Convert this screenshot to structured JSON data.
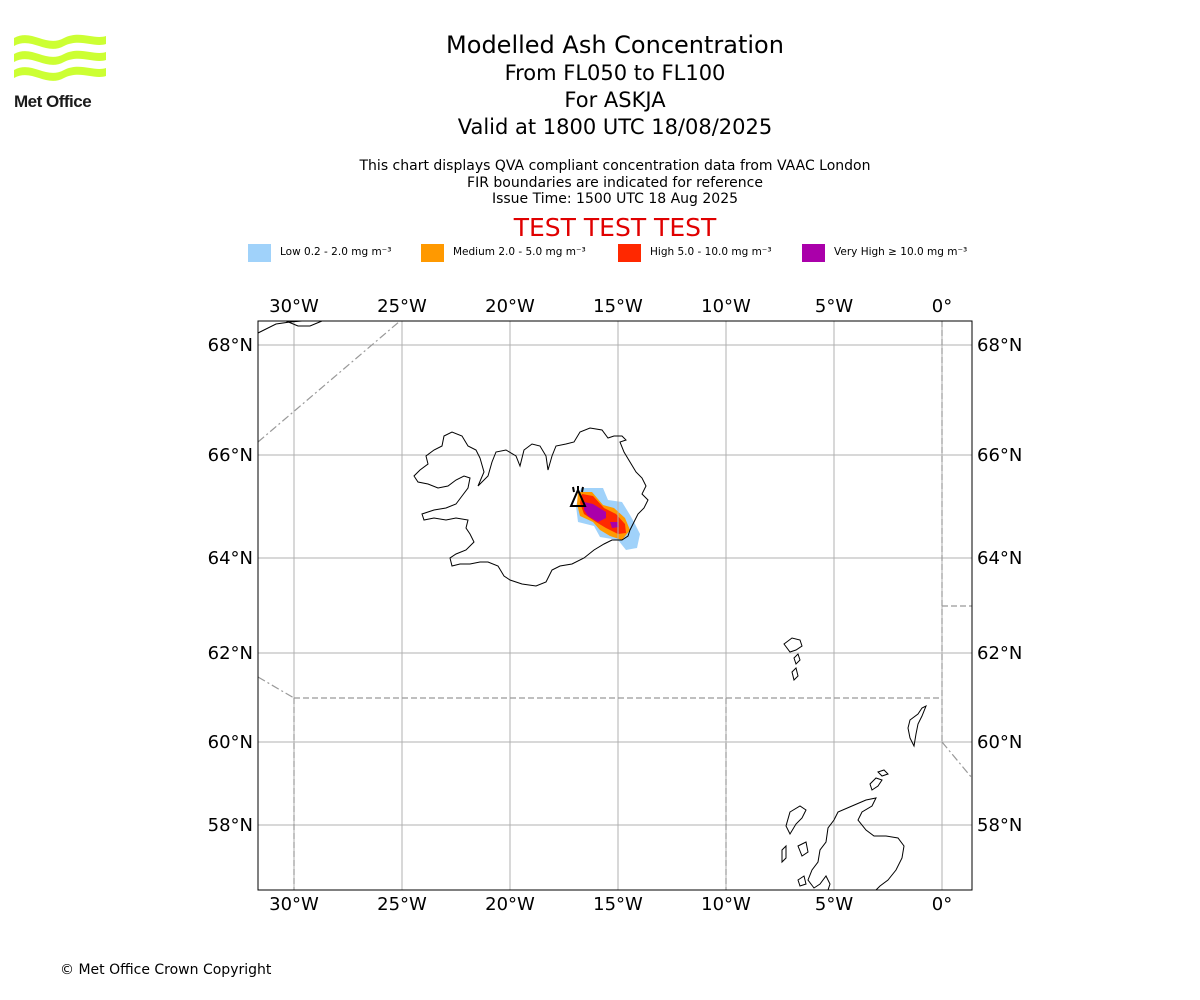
{
  "logo": {
    "text": "Met Office",
    "color": "#ccff33"
  },
  "titles": {
    "main": "Modelled Ash Concentration",
    "levels": "From FL050 to FL100",
    "volcano": "For ASKJA",
    "valid": "Valid at 1800 UTC 18/08/2025"
  },
  "info": {
    "line1": "This chart displays QVA compliant concentration data from VAAC London",
    "line2": "FIR boundaries are indicated for reference",
    "line3": "Issue Time: 1500 UTC 18 Aug 2025"
  },
  "test_banner": "TEST TEST TEST",
  "legend": [
    {
      "label": "Low 0.2 - 2.0 mg m⁻³",
      "color": "#a0d2fa"
    },
    {
      "label": "Medium 2.0 - 5.0 mg m⁻³",
      "color": "#ff9900"
    },
    {
      "label": "High 5.0 - 10.0 mg m⁻³",
      "color": "#ff2800"
    },
    {
      "label": "Very High ≥ 10.0 mg m⁻³",
      "color": "#aa00aa"
    }
  ],
  "map": {
    "lon_ticks": [
      {
        "value": -30,
        "label": "30°W"
      },
      {
        "value": -25,
        "label": "25°W"
      },
      {
        "value": -20,
        "label": "20°W"
      },
      {
        "value": -15,
        "label": "15°W"
      },
      {
        "value": -10,
        "label": "10°W"
      },
      {
        "value": -5,
        "label": "5°W"
      },
      {
        "value": 0,
        "label": "0°"
      }
    ],
    "lat_ticks": [
      {
        "value": 68,
        "label": "68°N"
      },
      {
        "value": 66,
        "label": "66°N"
      },
      {
        "value": 64,
        "label": "64°N"
      },
      {
        "value": 62,
        "label": "62°N"
      },
      {
        "value": 60,
        "label": "60°N"
      },
      {
        "value": 58,
        "label": "58°N"
      }
    ],
    "volcano_marker": "volcano"
  },
  "footer": "© Met Office Crown Copyright"
}
